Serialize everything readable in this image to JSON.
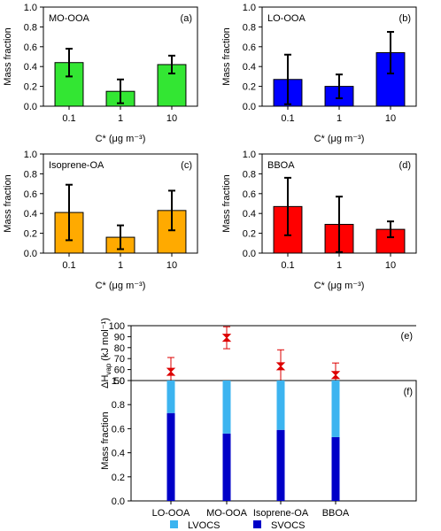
{
  "chart_data": [
    {
      "panel": "(a)",
      "type": "bar",
      "title": "MO-OOA",
      "categories": [
        "0.1",
        "1",
        "10"
      ],
      "values": [
        0.44,
        0.15,
        0.42
      ],
      "errors": [
        0.14,
        0.12,
        0.09
      ],
      "xlabel": "C* (μg m⁻³)",
      "ylabel": "Mass fraction",
      "ylim": [
        0,
        1.0
      ],
      "yticks": [
        "0.0",
        "0.2",
        "0.4",
        "0.6",
        "0.8",
        "1.0"
      ],
      "color": "#33e633"
    },
    {
      "panel": "(b)",
      "type": "bar",
      "title": "LO-OOA",
      "categories": [
        "0.1",
        "1",
        "10"
      ],
      "values": [
        0.27,
        0.2,
        0.54
      ],
      "errors": [
        0.25,
        0.12,
        0.21
      ],
      "xlabel": "C* (μg m⁻³)",
      "ylabel": "Mass fraction",
      "ylim": [
        0,
        1.0
      ],
      "yticks": [
        "0.0",
        "0.2",
        "0.4",
        "0.6",
        "0.8",
        "1.0"
      ],
      "color": "#0000ff"
    },
    {
      "panel": "(c)",
      "type": "bar",
      "title": "Isoprene-OA",
      "categories": [
        "0.1",
        "1",
        "10"
      ],
      "values": [
        0.41,
        0.16,
        0.43
      ],
      "errors": [
        0.28,
        0.12,
        0.2
      ],
      "xlabel": "C* (μg m⁻³)",
      "ylabel": "Mass fraction",
      "ylim": [
        0,
        1.0
      ],
      "yticks": [
        "0.0",
        "0.2",
        "0.4",
        "0.6",
        "0.8",
        "1.0"
      ],
      "color": "#ffaa00"
    },
    {
      "panel": "(d)",
      "type": "bar",
      "title": "BBOA",
      "categories": [
        "0.1",
        "1",
        "10"
      ],
      "values": [
        0.47,
        0.29,
        0.24
      ],
      "errors": [
        0.29,
        0.28,
        0.08
      ],
      "xlabel": "C* (μg m⁻³)",
      "ylabel": "Mass fraction",
      "ylim": [
        0,
        1.0
      ],
      "yticks": [
        "0.0",
        "0.2",
        "0.4",
        "0.6",
        "0.8",
        "1.0"
      ],
      "color": "#ff0000"
    },
    {
      "panel": "(e)",
      "type": "scatter",
      "categories": [
        "LO-OOA",
        "MO-OOA",
        "Isoprene-OA",
        "BBOA"
      ],
      "values": [
        58,
        89,
        63,
        55
      ],
      "errors": [
        13,
        10,
        15,
        11
      ],
      "ylabel": "ΔH",
      "ylabel_sub": "vap",
      "ylabel_unit": "(kJ mol⁻¹)",
      "ylim": [
        50,
        100
      ],
      "yticks": [
        "50",
        "60",
        "70",
        "80",
        "90",
        "100"
      ],
      "color": "#dd0000"
    },
    {
      "panel": "(f)",
      "type": "bar",
      "stacked": true,
      "categories": [
        "LO-OOA",
        "MO-OOA",
        "Isoprene-OA",
        "BBOA"
      ],
      "series": [
        {
          "name": "SVOCS",
          "values": [
            0.73,
            0.56,
            0.59,
            0.53
          ],
          "color": "#0000c8"
        },
        {
          "name": "LVOCS",
          "values": [
            0.27,
            0.44,
            0.41,
            0.47
          ],
          "color": "#3cb4f0"
        }
      ],
      "ylabel": "Mass fraction",
      "ylim": [
        0,
        1.0
      ],
      "yticks": [
        "0.0",
        "0.2",
        "0.4",
        "0.6",
        "0.8",
        "1.0"
      ],
      "legend_order": [
        "LVOCS",
        "SVOCS"
      ],
      "legend_position": "bottom"
    }
  ]
}
